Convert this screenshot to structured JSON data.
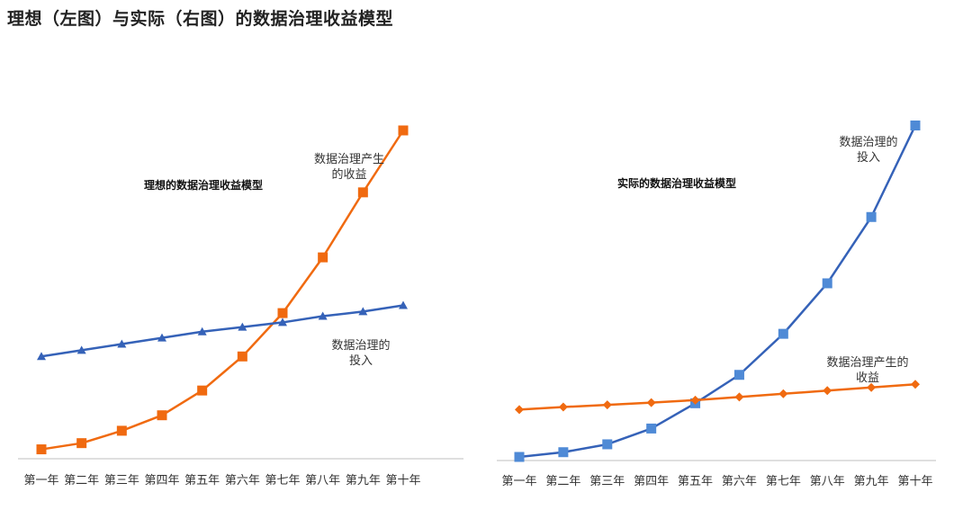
{
  "page_title": "理想（左图）与实际（右图）的数据治理收益模型",
  "colors": {
    "blue": "#3562b8",
    "blue_marker": "#4f8ad6",
    "orange": "#f06a10",
    "axis": "#bfbfbf"
  },
  "chart_data": [
    {
      "type": "line",
      "title": "理想的数据治理收益模型",
      "categories": [
        "第一年",
        "第二年",
        "第三年",
        "第四年",
        "第五年",
        "第六年",
        "第七年",
        "第八年",
        "第九年",
        "第十年"
      ],
      "ylim": [
        0,
        100
      ],
      "series": [
        {
          "name": "数据治理产生的收益",
          "name_lines": [
            "数据治理产生",
            "的收益"
          ],
          "color": "#f06a10",
          "marker": "square",
          "values": [
            1,
            3,
            7,
            12,
            20,
            31,
            45,
            63,
            84,
            104
          ]
        },
        {
          "name": "数据治理的投入",
          "name_lines": [
            "数据治理的",
            "投入"
          ],
          "color": "#3562b8",
          "marker": "triangle",
          "values": [
            31,
            33,
            35,
            37,
            39,
            40.5,
            42,
            44,
            45.5,
            47.5
          ]
        }
      ]
    },
    {
      "type": "line",
      "title": "实际的数据治理收益模型",
      "categories": [
        "第一年",
        "第二年",
        "第三年",
        "第四年",
        "第五年",
        "第六年",
        "第七年",
        "第八年",
        "第九年",
        "第十年"
      ],
      "ylim": [
        0,
        100
      ],
      "series": [
        {
          "name": "数据治理的投入",
          "name_lines": [
            "数据治理的",
            "投入"
          ],
          "color": "#3562b8",
          "marker": "square",
          "values": [
            0,
            1.5,
            4,
            9,
            17,
            26,
            39,
            55,
            76,
            105
          ]
        },
        {
          "name": "数据治理产生的收益",
          "name_lines": [
            "数据治理产生的",
            "收益"
          ],
          "color": "#f06a10",
          "marker": "diamond",
          "values": [
            15,
            15.8,
            16.5,
            17.2,
            18,
            19,
            20,
            21,
            22,
            23
          ]
        }
      ]
    }
  ]
}
